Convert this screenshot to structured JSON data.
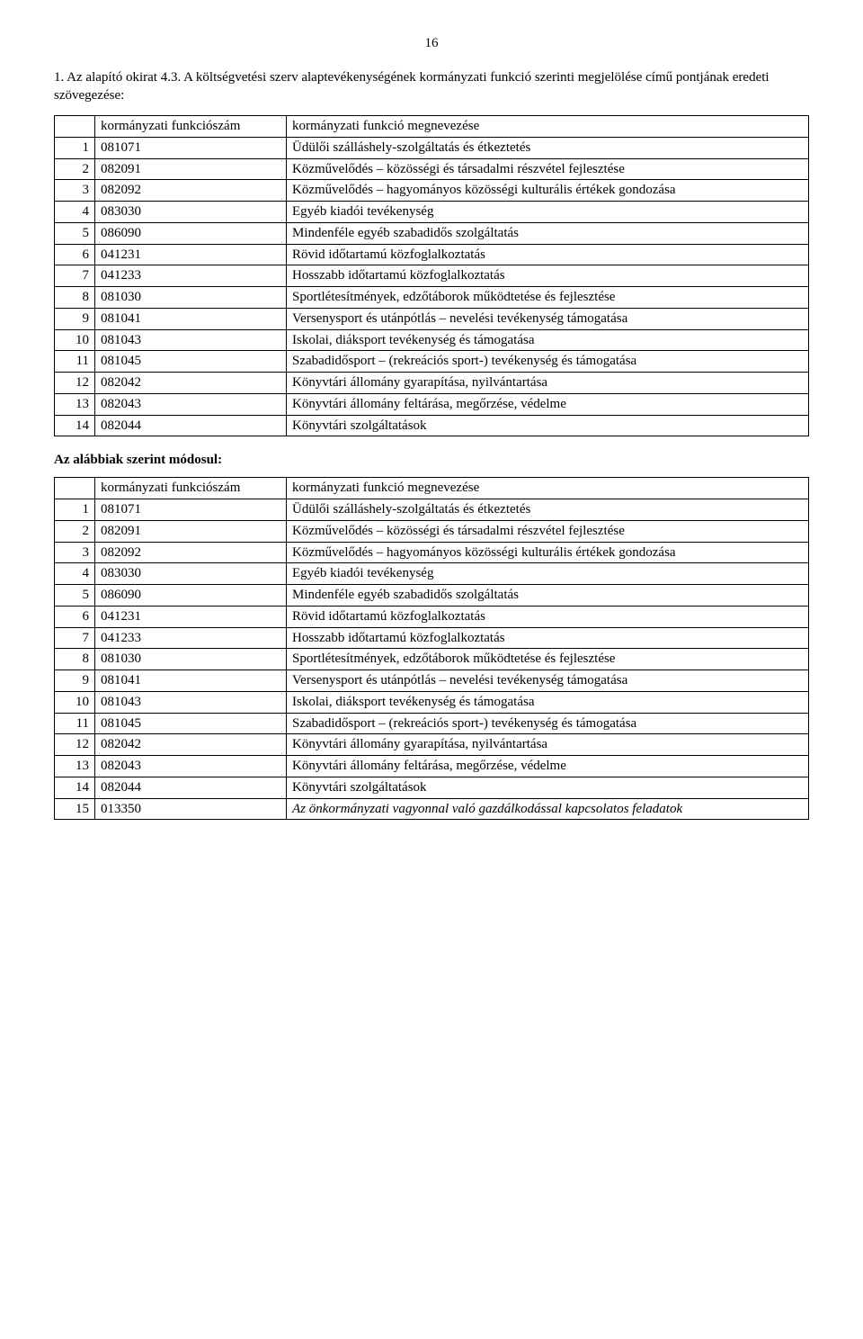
{
  "page_number": "16",
  "intro": "1. Az alapító okirat 4.3. A költségvetési szerv alaptevékenységének kormányzati funkció szerinti megjelölése című pontjának eredeti szövegezése:",
  "table1": {
    "header": {
      "code_label": "kormányzati funkciószám",
      "desc_label": "kormányzati funkció megnevezése"
    },
    "rows": [
      {
        "idx": "1",
        "code": "081071",
        "desc": "Üdülői szálláshely-szolgáltatás és étkeztetés"
      },
      {
        "idx": "2",
        "code": "082091",
        "desc": "Közművelődés – közösségi és társadalmi részvétel fejlesztése"
      },
      {
        "idx": "3",
        "code": "082092",
        "desc": "Közművelődés – hagyományos közösségi kulturális értékek gondozása"
      },
      {
        "idx": "4",
        "code": "083030",
        "desc": "Egyéb kiadói tevékenység"
      },
      {
        "idx": "5",
        "code": "086090",
        "desc": "Mindenféle egyéb szabadidős szolgáltatás"
      },
      {
        "idx": "6",
        "code": "041231",
        "desc": "Rövid időtartamú közfoglalkoztatás"
      },
      {
        "idx": "7",
        "code": "041233",
        "desc": "Hosszabb időtartamú közfoglalkoztatás"
      },
      {
        "idx": "8",
        "code": "081030",
        "desc": "Sportlétesítmények, edzőtáborok működtetése és fejlesztése"
      },
      {
        "idx": "9",
        "code": "081041",
        "desc": "Versenysport és utánpótlás – nevelési tevékenység támogatása"
      },
      {
        "idx": "10",
        "code": "081043",
        "desc": "Iskolai, diáksport tevékenység és támogatása"
      },
      {
        "idx": "11",
        "code": "081045",
        "desc": "Szabadidősport – (rekreációs sport-) tevékenység és támogatása"
      },
      {
        "idx": "12",
        "code": "082042",
        "desc": "Könyvtári állomány gyarapítása, nyilvántartása"
      },
      {
        "idx": "13",
        "code": "082043",
        "desc": "Könyvtári állomány feltárása, megőrzése, védelme"
      },
      {
        "idx": "14",
        "code": "082044",
        "desc": "Könyvtári szolgáltatások"
      }
    ]
  },
  "section_title": "Az alábbiak szerint módosul:",
  "table2": {
    "header": {
      "code_label": "kormányzati funkciószám",
      "desc_label": "kormányzati funkció megnevezése"
    },
    "rows": [
      {
        "idx": "1",
        "code": "081071",
        "desc": "Üdülői szálláshely-szolgáltatás és étkeztetés",
        "italic": false
      },
      {
        "idx": "2",
        "code": "082091",
        "desc": "Közművelődés – közösségi és társadalmi részvétel fejlesztése",
        "italic": false
      },
      {
        "idx": "3",
        "code": "082092",
        "desc": "Közművelődés – hagyományos közösségi kulturális értékek gondozása",
        "italic": false
      },
      {
        "idx": "4",
        "code": "083030",
        "desc": "Egyéb kiadói tevékenység",
        "italic": false
      },
      {
        "idx": "5",
        "code": "086090",
        "desc": "Mindenféle egyéb szabadidős szolgáltatás",
        "italic": false
      },
      {
        "idx": "6",
        "code": "041231",
        "desc": "Rövid időtartamú közfoglalkoztatás",
        "italic": false
      },
      {
        "idx": "7",
        "code": "041233",
        "desc": "Hosszabb időtartamú közfoglalkoztatás",
        "italic": false
      },
      {
        "idx": "8",
        "code": "081030",
        "desc": "Sportlétesítmények, edzőtáborok működtetése és fejlesztése",
        "italic": false
      },
      {
        "idx": "9",
        "code": "081041",
        "desc": "Versenysport és utánpótlás – nevelési tevékenység támogatása",
        "italic": false
      },
      {
        "idx": "10",
        "code": "081043",
        "desc": "Iskolai, diáksport tevékenység és támogatása",
        "italic": false
      },
      {
        "idx": "11",
        "code": "081045",
        "desc": "Szabadidősport – (rekreációs sport-) tevékenység és támogatása",
        "italic": false
      },
      {
        "idx": "12",
        "code": "082042",
        "desc": "Könyvtári állomány gyarapítása, nyilvántartása",
        "italic": false
      },
      {
        "idx": "13",
        "code": "082043",
        "desc": "Könyvtári állomány feltárása, megőrzése, védelme",
        "italic": false
      },
      {
        "idx": "14",
        "code": "082044",
        "desc": "Könyvtári szolgáltatások",
        "italic": false
      },
      {
        "idx": "15",
        "code": "013350",
        "desc": "Az önkormányzati vagyonnal való gazdálkodással kapcsolatos feladatok",
        "italic": true
      }
    ]
  }
}
